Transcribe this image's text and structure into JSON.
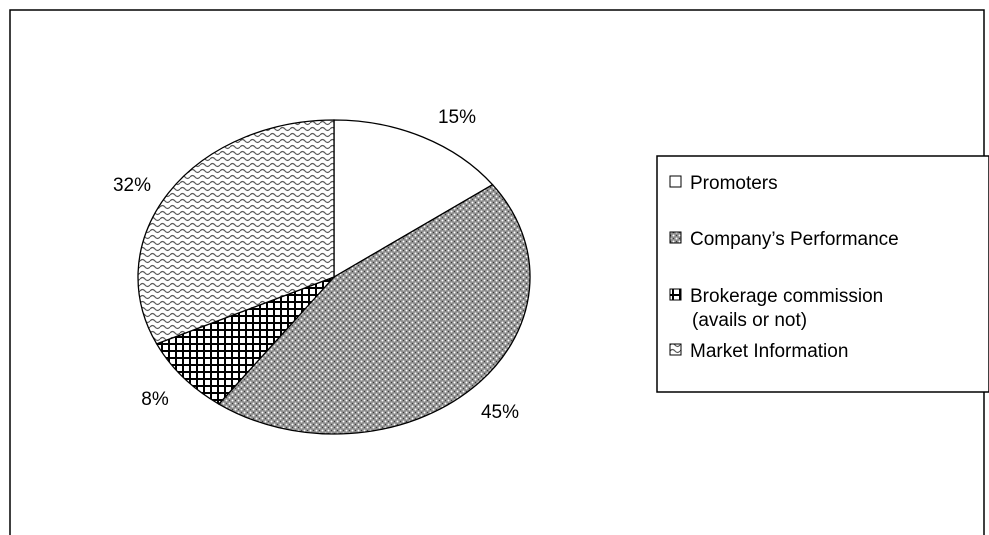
{
  "chart_data": {
    "type": "pie",
    "title": "",
    "categories": [
      "Promoters",
      "Company’s Performance",
      "Brokerage commission (avails or not)",
      "Market Information"
    ],
    "values": [
      15,
      45,
      8,
      32
    ],
    "value_labels": [
      "15%",
      "45%",
      "8%",
      "32%"
    ],
    "legend": {
      "placement": "right",
      "entries": [
        {
          "lines": [
            "Promoters"
          ],
          "pattern": "white"
        },
        {
          "lines": [
            "Company’s Performance"
          ],
          "pattern": "dotted"
        },
        {
          "lines": [
            "Brokerage commission",
            "(avails or not)"
          ],
          "pattern": "grid"
        },
        {
          "lines": [
            "Market Information"
          ],
          "pattern": "wave"
        }
      ]
    }
  }
}
